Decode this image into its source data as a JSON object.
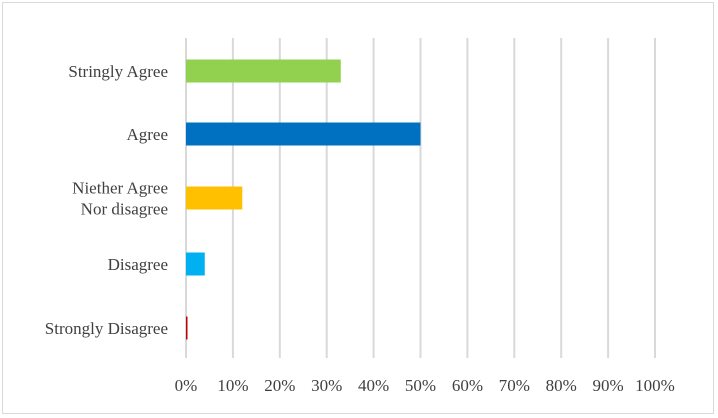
{
  "chart_data": {
    "type": "bar",
    "orientation": "horizontal",
    "categories": [
      [
        "Stringly Agree"
      ],
      [
        "Agree"
      ],
      [
        "Niether Agree",
        "Nor disagree"
      ],
      [
        "Disagree"
      ],
      [
        "Strongly Disagree"
      ]
    ],
    "values": [
      33,
      50,
      12,
      4,
      0.3
    ],
    "colors": [
      "#92d050",
      "#0070c0",
      "#ffc000",
      "#00b0f0",
      "#c00000"
    ],
    "xlim": [
      0,
      100
    ],
    "x_ticks": [
      "0%",
      "10%",
      "20%",
      "30%",
      "40%",
      "50%",
      "60%",
      "70%",
      "80%",
      "90%",
      "100%"
    ],
    "grid": true,
    "gridline_color": "#d9d9d9",
    "title": "",
    "xlabel": "",
    "ylabel": ""
  }
}
